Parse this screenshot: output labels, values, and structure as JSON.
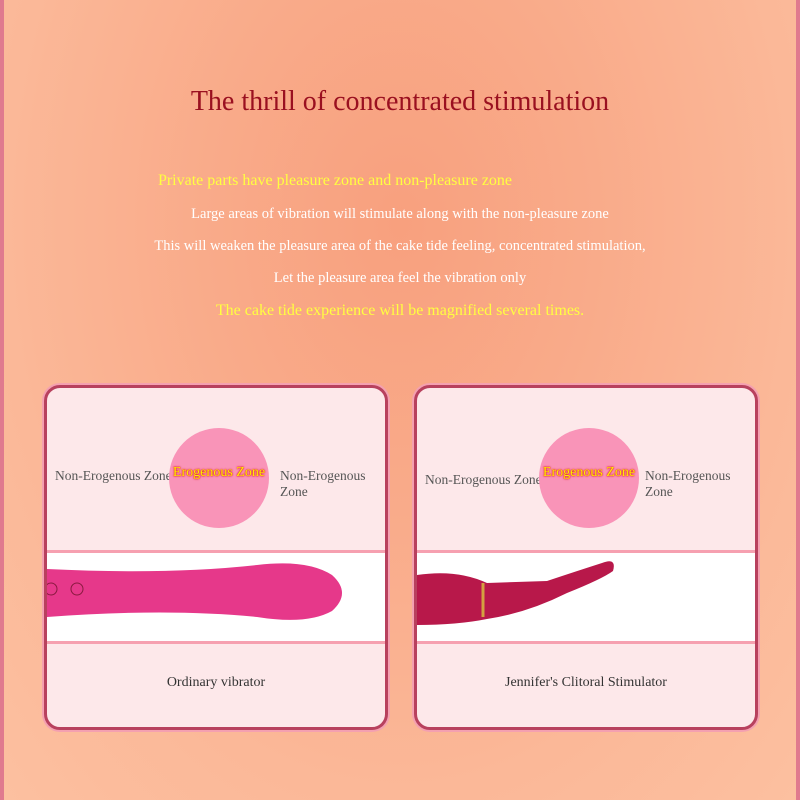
{
  "title": "The thrill of concentrated stimulation",
  "lines": [
    "Private parts have pleasure zone and non-pleasure zone",
    "Large areas of vibration will stimulate along with the non-pleasure zone",
    "This will weaken the pleasure area of the cake tide feeling, concentrated stimulation,",
    "Let the pleasure area feel the vibration only",
    "The cake tide experience will be magnified several times."
  ],
  "cards": [
    {
      "non_left": "Non-Erogenous Zone",
      "erogenous": "Erogenous Zone",
      "non_right": "Non-Erogenous Zone",
      "caption": "Ordinary vibrator"
    },
    {
      "non_left": "Non-Erogenous Zone",
      "erogenous": "Erogenous Zone",
      "non_right": "Non-Erogenous Zone",
      "caption": "Jennifer's Clitoral Stimulator"
    }
  ],
  "colors": {
    "title": "#9a1020",
    "highlight": "#ffff40",
    "product": "#e6388a"
  }
}
